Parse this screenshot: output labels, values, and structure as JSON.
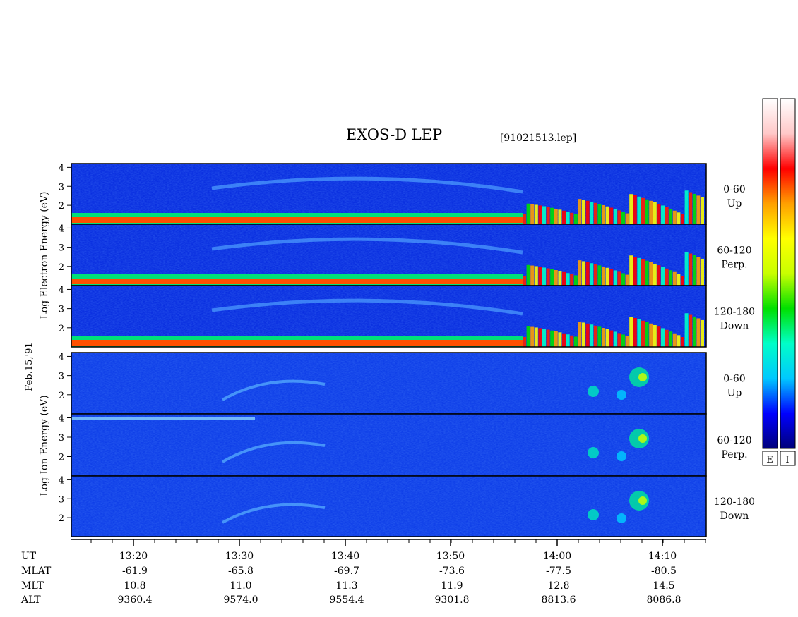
{
  "header": {
    "title": "EXOS-D LEP",
    "file_label": "[91021513.lep]"
  },
  "left_labels": {
    "electron": "Log Electron Energy (eV)",
    "ion": "Log Ion Energy (eV)",
    "date": "Feb.15,'91"
  },
  "colorbars": {
    "electron_label": "E",
    "ion_label": "I",
    "stops": [
      "#00007a",
      "#0000ff",
      "#00c8ff",
      "#00ffc8",
      "#00e000",
      "#c8ff00",
      "#ffff00",
      "#ffa000",
      "#ff0000",
      "#ffc8c8",
      "#ffffff"
    ]
  },
  "chart_data": {
    "type": "heatmap",
    "title": "EXOS-D LEP",
    "ylim": [
      1,
      4.2
    ],
    "y_ticks": [
      "2",
      "3",
      "4"
    ],
    "panels": [
      {
        "species": "Electron",
        "pitch_angle": "0-60",
        "direction": "Up"
      },
      {
        "species": "Electron",
        "pitch_angle": "60-120",
        "direction": "Perp."
      },
      {
        "species": "Electron",
        "pitch_angle": "120-180",
        "direction": "Down"
      },
      {
        "species": "Ion",
        "pitch_angle": "0-60",
        "direction": "Up"
      },
      {
        "species": "Ion",
        "pitch_angle": "60-120",
        "direction": "Perp."
      },
      {
        "species": "Ion",
        "pitch_angle": "120-180",
        "direction": "Down"
      }
    ],
    "x_axis": {
      "row_labels": [
        "UT",
        "MLAT",
        "MLT",
        "ALT"
      ],
      "ticks": [
        {
          "ut": "13:20",
          "mlat": "-61.9",
          "mlt": "10.8",
          "alt": "9360.4"
        },
        {
          "ut": "13:30",
          "mlat": "-65.8",
          "mlt": "11.0",
          "alt": "9574.0"
        },
        {
          "ut": "13:40",
          "mlat": "-69.7",
          "mlt": "11.3",
          "alt": "9554.4"
        },
        {
          "ut": "13:50",
          "mlat": "-73.6",
          "mlt": "11.9",
          "alt": "9301.8"
        },
        {
          "ut": "14:00",
          "mlat": "-77.5",
          "mlt": "12.8",
          "alt": "8813.6"
        },
        {
          "ut": "14:10",
          "mlat": "-80.5",
          "mlt": "14.5",
          "alt": "8086.8"
        }
      ]
    }
  }
}
